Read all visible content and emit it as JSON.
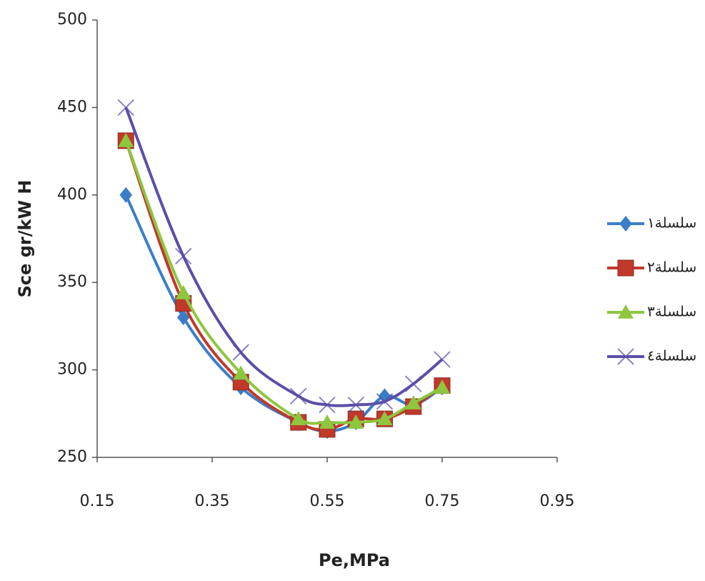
{
  "chart_data": {
    "type": "line",
    "x_label": "Pe,MPa",
    "y_label": "Sce gr/kW H",
    "x": [
      0.2,
      0.3,
      0.4,
      0.5,
      0.55,
      0.6,
      0.65,
      0.7,
      0.75
    ],
    "series": [
      {
        "name": "سلسلة١",
        "color": "#3b7ec8",
        "marker": "diamond",
        "values": [
          400,
          330,
          290,
          270,
          265,
          270,
          285,
          280,
          290
        ]
      },
      {
        "name": "سلسلة٢",
        "color": "#c0392b",
        "marker": "square",
        "values": [
          431,
          338,
          293,
          270,
          266,
          272,
          272,
          279,
          291
        ]
      },
      {
        "name": "سلسلة٣",
        "color": "#8dc63f",
        "marker": "triangle",
        "values": [
          431,
          344,
          298,
          272,
          270,
          270,
          272,
          281,
          290
        ]
      },
      {
        "name": "سلسلة٤",
        "color": "#5a4fa8",
        "marker": "x",
        "values": [
          450,
          365,
          310,
          285,
          280,
          280,
          282,
          292,
          306
        ]
      }
    ],
    "xlim": [
      0.15,
      0.95
    ],
    "xticks": [
      0.15,
      0.35,
      0.55,
      0.75,
      0.95
    ],
    "ylim": [
      250,
      500
    ],
    "yticks": [
      250,
      300,
      350,
      400,
      450,
      500
    ],
    "grid": false,
    "smooth": true,
    "legend": "right"
  }
}
